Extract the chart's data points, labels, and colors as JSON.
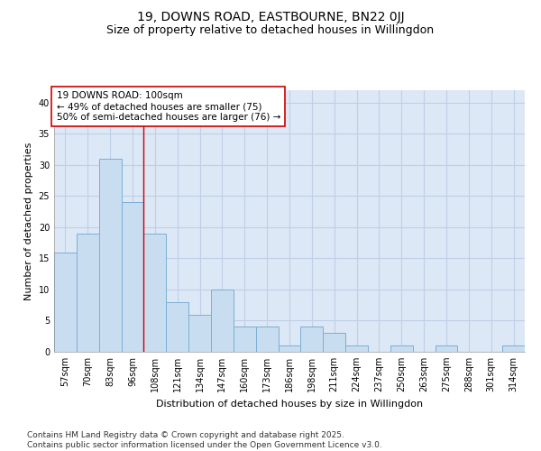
{
  "title1": "19, DOWNS ROAD, EASTBOURNE, BN22 0JJ",
  "title2": "Size of property relative to detached houses in Willingdon",
  "xlabel": "Distribution of detached houses by size in Willingdon",
  "ylabel": "Number of detached properties",
  "categories": [
    "57sqm",
    "70sqm",
    "83sqm",
    "96sqm",
    "108sqm",
    "121sqm",
    "134sqm",
    "147sqm",
    "160sqm",
    "173sqm",
    "186sqm",
    "198sqm",
    "211sqm",
    "224sqm",
    "237sqm",
    "250sqm",
    "263sqm",
    "275sqm",
    "288sqm",
    "301sqm",
    "314sqm"
  ],
  "values": [
    16,
    19,
    31,
    24,
    19,
    8,
    6,
    10,
    4,
    4,
    1,
    4,
    3,
    1,
    0,
    1,
    0,
    1,
    0,
    0,
    1
  ],
  "bar_color": "#c9ddf0",
  "bar_edge_color": "#7bafd4",
  "red_line_x": 3.5,
  "annotation_line1": "19 DOWNS ROAD: 100sqm",
  "annotation_line2": "← 49% of detached houses are smaller (75)",
  "annotation_line3": "50% of semi-detached houses are larger (76) →",
  "annotation_box_color": "#ffffff",
  "annotation_box_edge": "#cc0000",
  "ylim": [
    0,
    42
  ],
  "yticks": [
    0,
    5,
    10,
    15,
    20,
    25,
    30,
    35,
    40
  ],
  "grid_color": "#c0cfe8",
  "background_color": "#dce8f5",
  "footer_line1": "Contains HM Land Registry data © Crown copyright and database right 2025.",
  "footer_line2": "Contains public sector information licensed under the Open Government Licence v3.0.",
  "title_fontsize": 10,
  "subtitle_fontsize": 9,
  "axis_label_fontsize": 8,
  "tick_fontsize": 7,
  "annotation_fontsize": 7.5,
  "footer_fontsize": 6.5
}
